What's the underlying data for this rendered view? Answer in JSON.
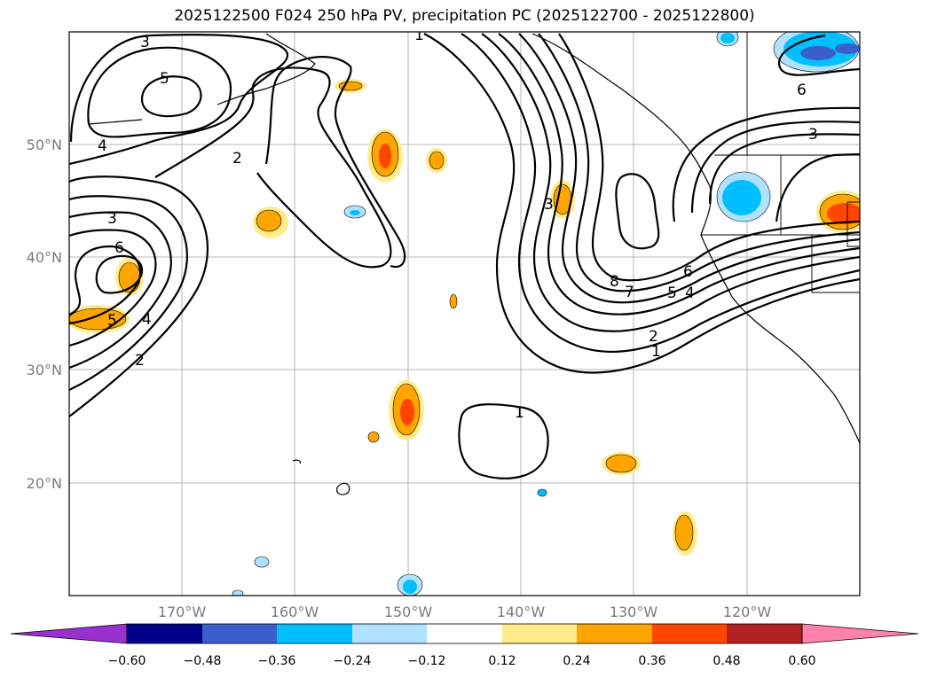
{
  "title": "2025122500 F024 250 hPa PV, precipitation PC (2025122700 - 2025122800)",
  "lat_labels": [
    "50°N",
    "40°N",
    "30°N",
    "20°N"
  ],
  "lon_labels": [
    "170°W",
    "160°W",
    "150°W",
    "140°W",
    "130°W",
    "120°W"
  ],
  "colorbar": {
    "ticks": [
      "−0.60",
      "−0.48",
      "−0.36",
      "−0.24",
      "−0.12",
      "0.12",
      "0.24",
      "0.36",
      "0.48",
      "0.60"
    ],
    "colors": [
      "#9b30d0",
      "#00008b",
      "#3a5fcd",
      "#00bfff",
      "#b0e2ff",
      "#ffffff",
      "#ffec8b",
      "#ffa500",
      "#ff4500",
      "#b22222",
      "#ff82ab"
    ]
  },
  "contour_labels": [
    "3",
    "1",
    "5",
    "4",
    "2",
    "3",
    "6",
    "5",
    "4",
    "2",
    "3",
    "8",
    "7",
    "6",
    "5",
    "4",
    "2",
    "1",
    "1",
    "6",
    "3"
  ]
}
